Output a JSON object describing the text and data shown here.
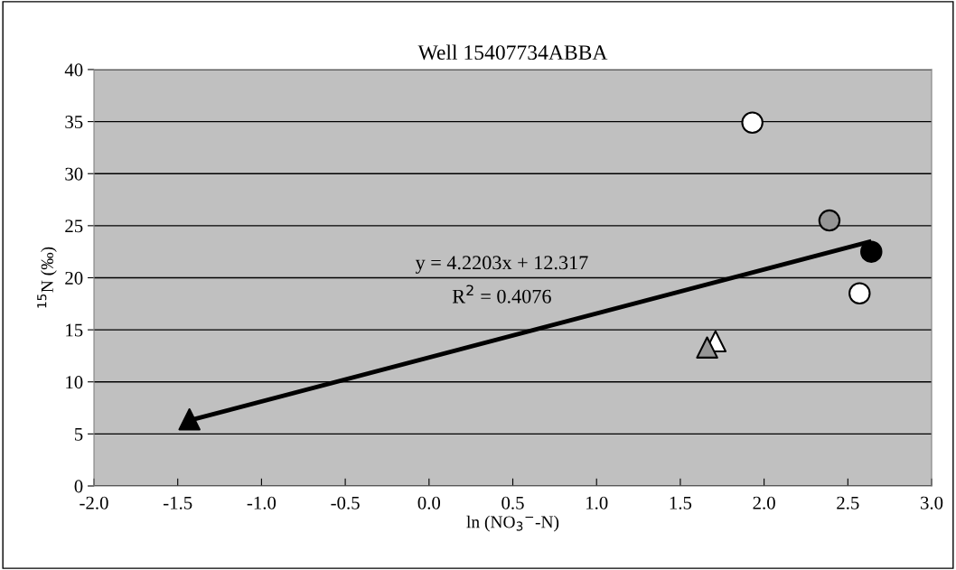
{
  "chart_data": {
    "type": "scatter",
    "title": "Well 15407734ABBA",
    "xlabel": "ln (NO$_{3}$$^{−}$-N)",
    "ylabel": "$^{15}$N (‰)",
    "xlim": [
      -2.0,
      3.0
    ],
    "xticks": [
      {
        "value": -2.0,
        "label": "-2.0"
      },
      {
        "value": -1.5,
        "label": "-1.5"
      },
      {
        "value": -1.0,
        "label": "-1.0"
      },
      {
        "value": -0.5,
        "label": "-0.5"
      },
      {
        "value": 0.0,
        "label": "0.0"
      },
      {
        "value": 0.5,
        "label": "0.5"
      },
      {
        "value": 1.0,
        "label": "1.0"
      },
      {
        "value": 1.5,
        "label": "1.5"
      },
      {
        "value": 2.0,
        "label": "2.0"
      },
      {
        "value": 2.5,
        "label": "2.5"
      },
      {
        "value": 3.0,
        "label": "3.0"
      }
    ],
    "ylim": [
      0,
      40
    ],
    "yticks": [
      0,
      5,
      10,
      15,
      20,
      25,
      30,
      35,
      40
    ],
    "grid": "y",
    "legend": false,
    "annotations": [
      "y = 4.2203x + 12.317",
      "R$^{2}$ = 0.4076"
    ],
    "series": [
      {
        "type": "line",
        "color": "#000000",
        "marker": "none",
        "line_style": "solid",
        "x": [
          -1.43,
          2.64
        ],
        "values": [
          6.3,
          23.5
        ]
      },
      {
        "color": "#000000",
        "marker": "triangle",
        "x": [
          -1.43
        ],
        "values": [
          6.4
        ]
      },
      {
        "color": "#ffffff",
        "marker": "circle",
        "x": [
          1.93,
          2.57
        ],
        "values": [
          34.9,
          18.5
        ]
      },
      {
        "color": "#969696",
        "marker": "circle",
        "x": [
          2.39
        ],
        "values": [
          25.5
        ]
      },
      {
        "color": "#000000",
        "marker": "circle",
        "x": [
          2.64
        ],
        "values": [
          22.5
        ]
      },
      {
        "color": "#ffffff",
        "marker": "triangle",
        "x": [
          1.71
        ],
        "values": [
          13.9
        ]
      },
      {
        "color": "#969696",
        "marker": "triangle",
        "x": [
          1.66
        ],
        "values": [
          13.3
        ]
      }
    ]
  }
}
